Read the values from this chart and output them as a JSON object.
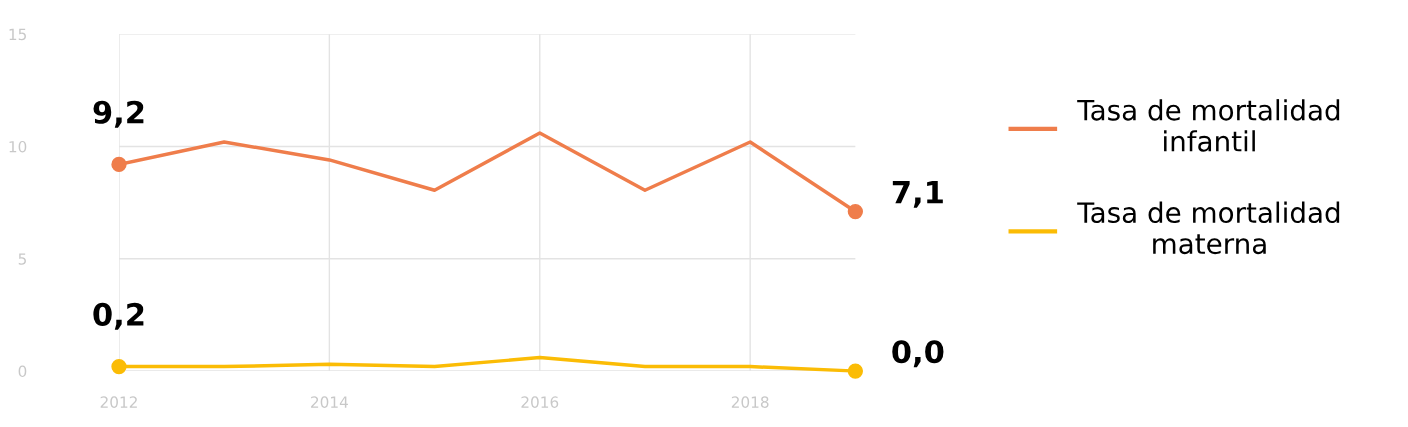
{
  "chart_data": {
    "type": "line",
    "x": [
      2012,
      2013,
      2014,
      2015,
      2016,
      2017,
      2018,
      2019
    ],
    "series": [
      {
        "name": "Tasa de mortalidad infantil",
        "color": "#ef7d4b",
        "values": [
          9.2,
          10.2,
          9.4,
          8.05,
          10.6,
          8.05,
          10.2,
          7.1
        ],
        "value_labels": [
          "9,2",
          null,
          null,
          null,
          null,
          null,
          null,
          "7,1"
        ]
      },
      {
        "name": "Tasa de mortalidad materna",
        "color": "#fbbc05",
        "values": [
          0.2,
          0.2,
          0.3,
          0.2,
          0.6,
          0.2,
          0.2,
          0.0
        ],
        "value_labels": [
          "0,2",
          null,
          null,
          null,
          null,
          null,
          null,
          "0,0"
        ]
      }
    ],
    "xlim": [
      2012,
      2019
    ],
    "xticks": [
      2012,
      2014,
      2016,
      2018
    ],
    "ylim": [
      0,
      15
    ],
    "yticks": [
      0,
      5,
      10,
      15
    ],
    "grid": true,
    "legend": "right",
    "line_style": "solid"
  }
}
